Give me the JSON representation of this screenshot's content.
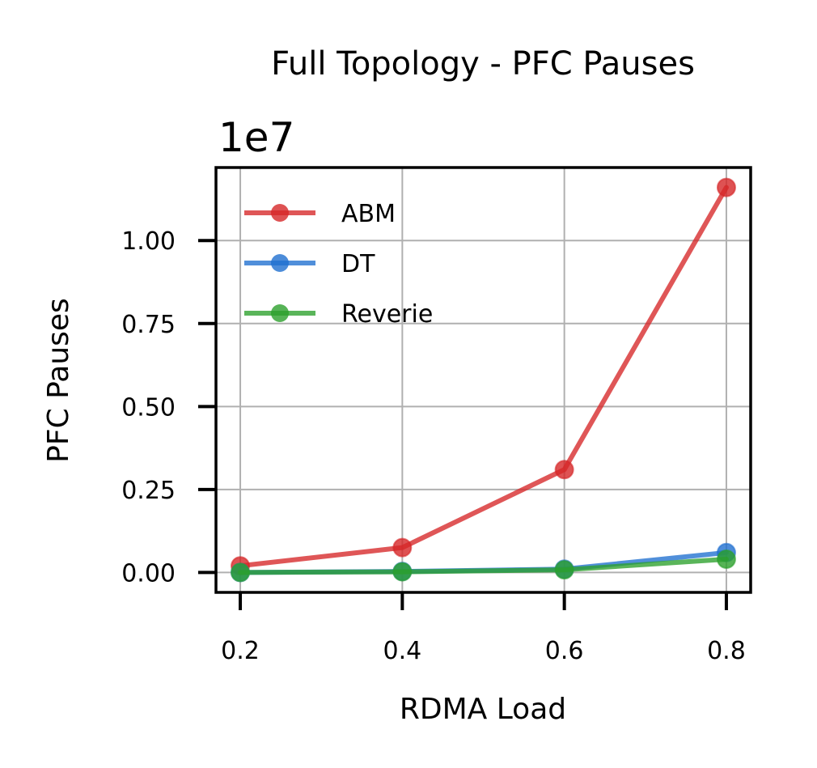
{
  "chart_data": {
    "type": "line",
    "title": "Full Topology - PFC Pauses",
    "offset_label": "1e7",
    "xlabel": "RDMA Load",
    "ylabel": "PFC Pauses",
    "x": [
      0.2,
      0.4,
      0.6,
      0.8
    ],
    "x_tick_labels": [
      "0.2",
      "0.4",
      "0.6",
      "0.8"
    ],
    "y_tick_values": [
      0.0,
      0.25,
      0.5,
      0.75,
      1.0
    ],
    "y_tick_labels": [
      "0.00",
      "0.25",
      "0.50",
      "0.75",
      "1.00"
    ],
    "xlim": [
      0.17,
      0.83
    ],
    "ylim": [
      -0.06,
      1.22
    ],
    "y_scale_multiplier": 10000000,
    "grid": true,
    "legend_position": "upper-left",
    "series": [
      {
        "name": "ABM",
        "color": "#d62728",
        "values": [
          0.02,
          0.075,
          0.31,
          1.16
        ]
      },
      {
        "name": "DT",
        "color": "#1f6fd0",
        "values": [
          0.0,
          0.003,
          0.01,
          0.06
        ]
      },
      {
        "name": "Reverie",
        "color": "#2ca02c",
        "values": [
          0.0,
          0.002,
          0.008,
          0.04
        ]
      }
    ]
  }
}
